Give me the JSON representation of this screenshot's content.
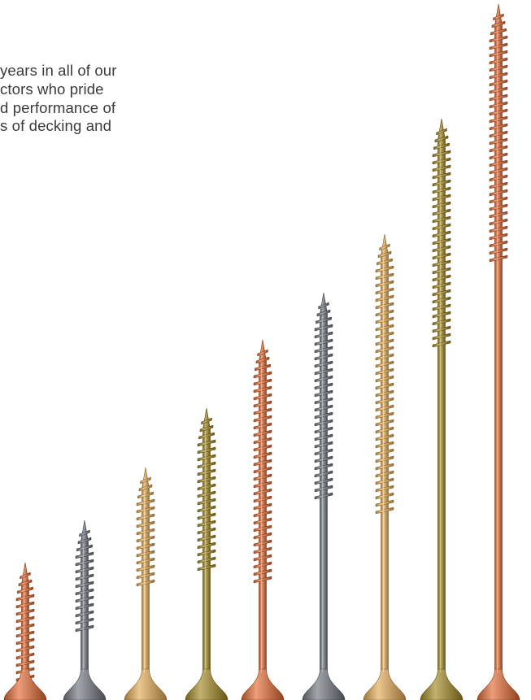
{
  "intro": {
    "lines": [
      "years in all of our",
      "ctors who pride",
      "d performance of",
      "s of decking and"
    ]
  },
  "screws": [
    {
      "name": "screw-1",
      "finish": "copper",
      "color": "#c97a56"
    },
    {
      "name": "screw-2",
      "finish": "gray",
      "color": "#7f8388"
    },
    {
      "name": "screw-3",
      "finish": "tan",
      "color": "#c9a46d"
    },
    {
      "name": "screw-4",
      "finish": "olive",
      "color": "#a08e4c"
    },
    {
      "name": "screw-5",
      "finish": "copper",
      "color": "#c97a56"
    },
    {
      "name": "screw-6",
      "finish": "gray",
      "color": "#7f8388"
    },
    {
      "name": "screw-7",
      "finish": "tan",
      "color": "#c9a46d"
    },
    {
      "name": "screw-8",
      "finish": "olive",
      "color": "#a08e4c"
    },
    {
      "name": "screw-9",
      "finish": "copper",
      "color": "#c97a56"
    }
  ]
}
